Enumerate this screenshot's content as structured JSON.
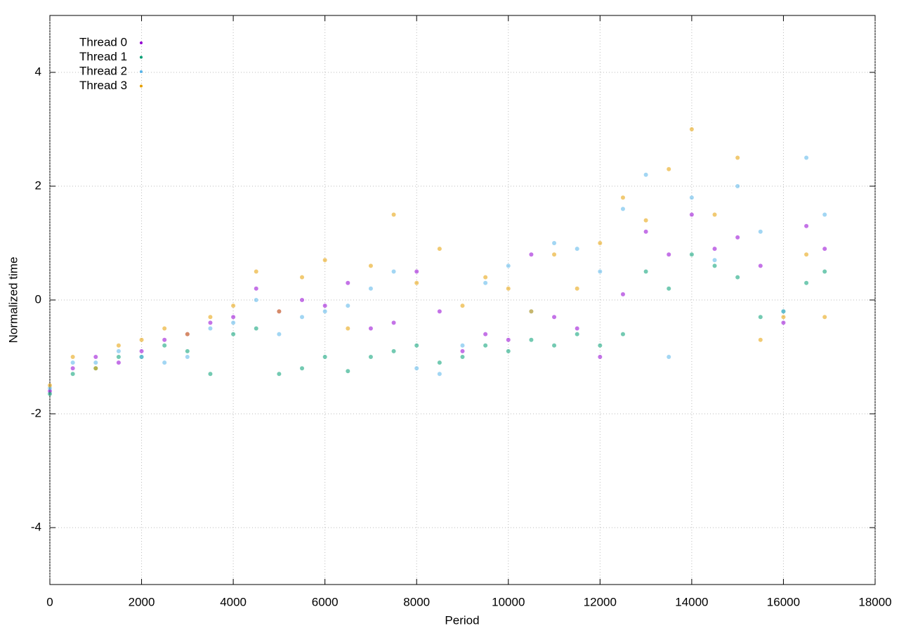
{
  "chart_data": {
    "type": "scatter",
    "x_label": "Period",
    "y_label": "Normalized time",
    "x": [
      0,
      500,
      1000,
      1500,
      2000,
      2500,
      3000,
      3500,
      4000,
      4500,
      5000,
      5500,
      6000,
      6500,
      7000,
      7500,
      8000,
      8500,
      9000,
      9500,
      10000,
      10500,
      11000,
      11500,
      12000,
      12500,
      13000,
      13500,
      14000,
      14500,
      15000,
      15500,
      16000,
      16500,
      16900
    ],
    "series": [
      {
        "name": "Thread 0",
        "color": "#9400d3",
        "values": [
          -1.6,
          -1.2,
          -1.0,
          -1.1,
          -0.9,
          -0.7,
          -0.6,
          -0.4,
          -0.3,
          0.2,
          -0.2,
          0.0,
          -0.1,
          0.3,
          -0.5,
          -0.4,
          0.5,
          -0.2,
          -0.9,
          -0.6,
          -0.7,
          0.8,
          -0.3,
          -0.5,
          -1.0,
          0.1,
          1.2,
          0.8,
          1.5,
          0.9,
          1.1,
          0.6,
          -0.4,
          1.3,
          0.9
        ]
      },
      {
        "name": "Thread 1",
        "color": "#009e73",
        "values": [
          -1.65,
          -1.3,
          -1.2,
          -1.0,
          -1.0,
          -0.8,
          -0.9,
          -1.3,
          -0.6,
          -0.5,
          -1.3,
          -1.2,
          -1.0,
          -1.25,
          -1.0,
          -0.9,
          -0.8,
          -1.1,
          -1.0,
          -0.8,
          -0.9,
          -0.7,
          -0.8,
          -0.6,
          -0.8,
          -0.6,
          0.5,
          0.2,
          0.8,
          0.6,
          0.4,
          -0.3,
          -0.2,
          0.3,
          0.5
        ]
      },
      {
        "name": "Thread 2",
        "color": "#56b4e9",
        "values": [
          -1.55,
          -1.1,
          -1.1,
          -0.9,
          -1.0,
          -1.1,
          -1.0,
          -0.5,
          -0.4,
          0.0,
          -0.6,
          -0.3,
          -0.2,
          -0.1,
          0.2,
          0.5,
          -1.2,
          -1.3,
          -0.8,
          0.3,
          0.6,
          -0.2,
          1.0,
          0.9,
          0.5,
          1.6,
          2.2,
          -1.0,
          1.8,
          0.7,
          2.0,
          1.2,
          -0.2,
          2.5,
          1.5
        ]
      },
      {
        "name": "Thread 3",
        "color": "#e69f00",
        "values": [
          -1.5,
          -1.0,
          -1.2,
          -0.8,
          -0.7,
          -0.5,
          -0.6,
          -0.3,
          -0.1,
          0.5,
          -0.2,
          0.4,
          0.7,
          -0.5,
          0.6,
          1.5,
          0.3,
          0.9,
          -0.1,
          0.4,
          0.2,
          -0.2,
          0.8,
          0.2,
          1.0,
          1.8,
          1.4,
          2.3,
          3.0,
          1.5,
          2.5,
          -0.7,
          -0.3,
          0.8,
          -0.3
        ]
      }
    ],
    "xlim": [
      0,
      18000
    ],
    "xticks": [
      0,
      2000,
      4000,
      6000,
      8000,
      10000,
      12000,
      14000,
      16000,
      18000
    ],
    "ylim": [
      -5,
      5
    ],
    "yticks": [
      -4,
      -2,
      0,
      2,
      4
    ],
    "grid": true,
    "legend": "top-left"
  }
}
